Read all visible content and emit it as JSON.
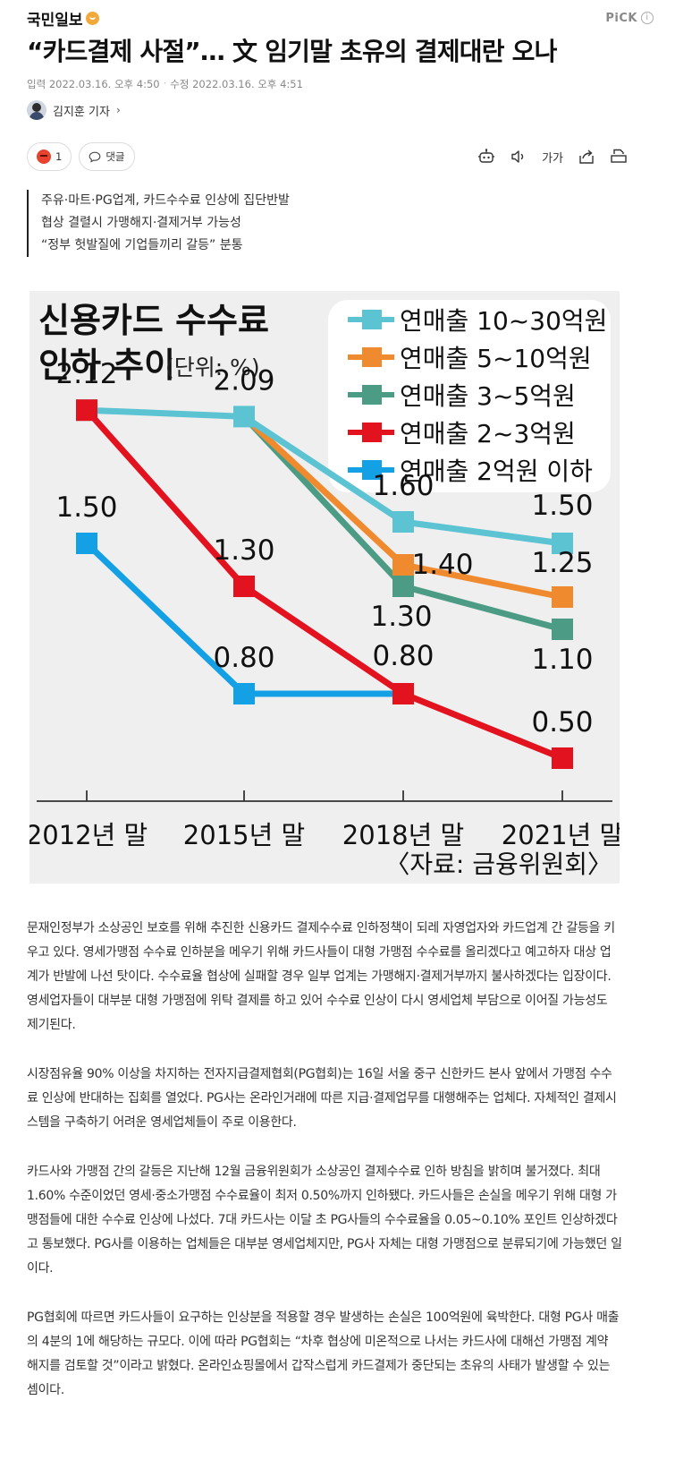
{
  "header": {
    "press_name": "국민일보",
    "pick_label": "PiCK",
    "info_glyph": "i"
  },
  "article": {
    "title": "“카드결제 사절”… 文 임기말 초유의 결제대란 오나",
    "published": "입력 2022.03.16. 오후 4:50",
    "modified": "수정 2022.03.16. 오후 4:51",
    "author": "김지훈 기자",
    "reaction_count": "1",
    "comment_label": "댓글",
    "font_size_label": "가가",
    "summary": [
      "주유·마트·PG업계, 카드수수료 인상에 집단반발",
      "협상 결렬시 가맹해지·결제거부 가능성",
      "“정부 헛발질에 기업들끼리 갈등” 분통"
    ],
    "paragraphs": [
      "문재인정부가 소상공인 보호를 위해 추진한 신용카드 결제수수료 인하정책이 되레 자영업자와 카드업계 간 갈등을 키우고 있다. 영세가맹점 수수료 인하분을 메우기 위해 카드사들이 대형 가맹점 수수료를 올리겠다고 예고하자 대상 업계가 반발에 나선 탓이다. 수수료율 협상에 실패할 경우 일부 업계는 가맹해지·결제거부까지 불사하겠다는 입장이다. 영세업자들이 대부분 대형 가맹점에 위탁 결제를 하고 있어 수수료 인상이 다시 영세업체 부담으로 이어질 가능성도 제기된다.",
      "시장점유율 90% 이상을 차지하는 전자지급결제협회(PG협회)는 16일 서울 중구 신한카드 본사 앞에서 가맹점 수수료 인상에 반대하는 집회를 열었다. PG사는 온라인거래에 따른 지급·결제업무를 대행해주는 업체다. 자체적인 결제시스템을 구축하기 어려운 영세업체들이 주로 이용한다.",
      "카드사와 가맹점 간의 갈등은 지난해 12월 금융위원회가 소상공인 결제수수료 인하 방침을 밝히며 불거졌다. 최대 1.60% 수준이었던 영세·중소가맹점 수수료율이 최저 0.50%까지 인하됐다. 카드사들은 손실을 메우기 위해 대형 가맹점들에 대한 수수료 인상에 나섰다. 7대 카드사는 이달 초 PG사들의 수수료율을 0.05~0.10% 포인트 인상하겠다고 통보했다. PG사를 이용하는 업체들은 대부분 영세업체지만, PG사 자체는 대형 가맹점으로 분류되기에 가능했던 일이다.",
      "PG협회에 따르면 카드사들이 요구하는 인상분을 적용할 경우 발생하는 손실은 100억원에 육박한다. 대형 PG사 매출의 4분의 1에 해당하는 규모다. 이에 따라 PG협회는 “차후 협상에 미온적으로 나서는 카드사에 대해선 가맹점 계약 해지를 검토할 것”이라고 밝혔다. 온라인쇼핑몰에서 갑작스럽게 카드결제가 중단되는 초유의 사태가 발생할 수 있는 셈이다."
    ]
  },
  "chart_data": {
    "type": "line",
    "title_line1": "신용카드 수수료",
    "title_line2": "인하 추이",
    "unit": "(단위: %)",
    "source": "〈자료: 금융위원회〉",
    "categories": [
      "2012년 말",
      "2015년 말",
      "2018년 말",
      "2021년 말"
    ],
    "ylim": [
      0.3,
      2.3
    ],
    "grid": false,
    "legend_position": "top-right",
    "series": [
      {
        "name": "연매출 10~30억원",
        "color": "#5cc3d3",
        "values": [
          2.12,
          2.09,
          1.6,
          1.5
        ],
        "labels": [
          "2.12",
          "2.09",
          "1.60",
          "1.50"
        ]
      },
      {
        "name": "연매출 5~10억원",
        "color": "#f08a2e",
        "values": [
          null,
          2.09,
          1.4,
          1.25
        ],
        "labels": [
          "",
          "",
          "1.40",
          "1.25"
        ]
      },
      {
        "name": "연매출 3~5억원",
        "color": "#4c9c85",
        "values": [
          null,
          2.09,
          1.3,
          1.1
        ],
        "labels": [
          "",
          "",
          "1.30",
          "1.10"
        ]
      },
      {
        "name": "연매출 2~3억원",
        "color": "#e3121f",
        "values": [
          2.12,
          1.3,
          0.8,
          0.5
        ],
        "labels": [
          "",
          "1.30",
          "0.80",
          "0.50"
        ]
      },
      {
        "name": "연매출 2억원 이하",
        "color": "#14a0e4",
        "values": [
          1.5,
          0.8,
          0.8,
          null
        ],
        "labels": [
          "1.50",
          "0.80",
          "",
          ""
        ]
      }
    ]
  }
}
